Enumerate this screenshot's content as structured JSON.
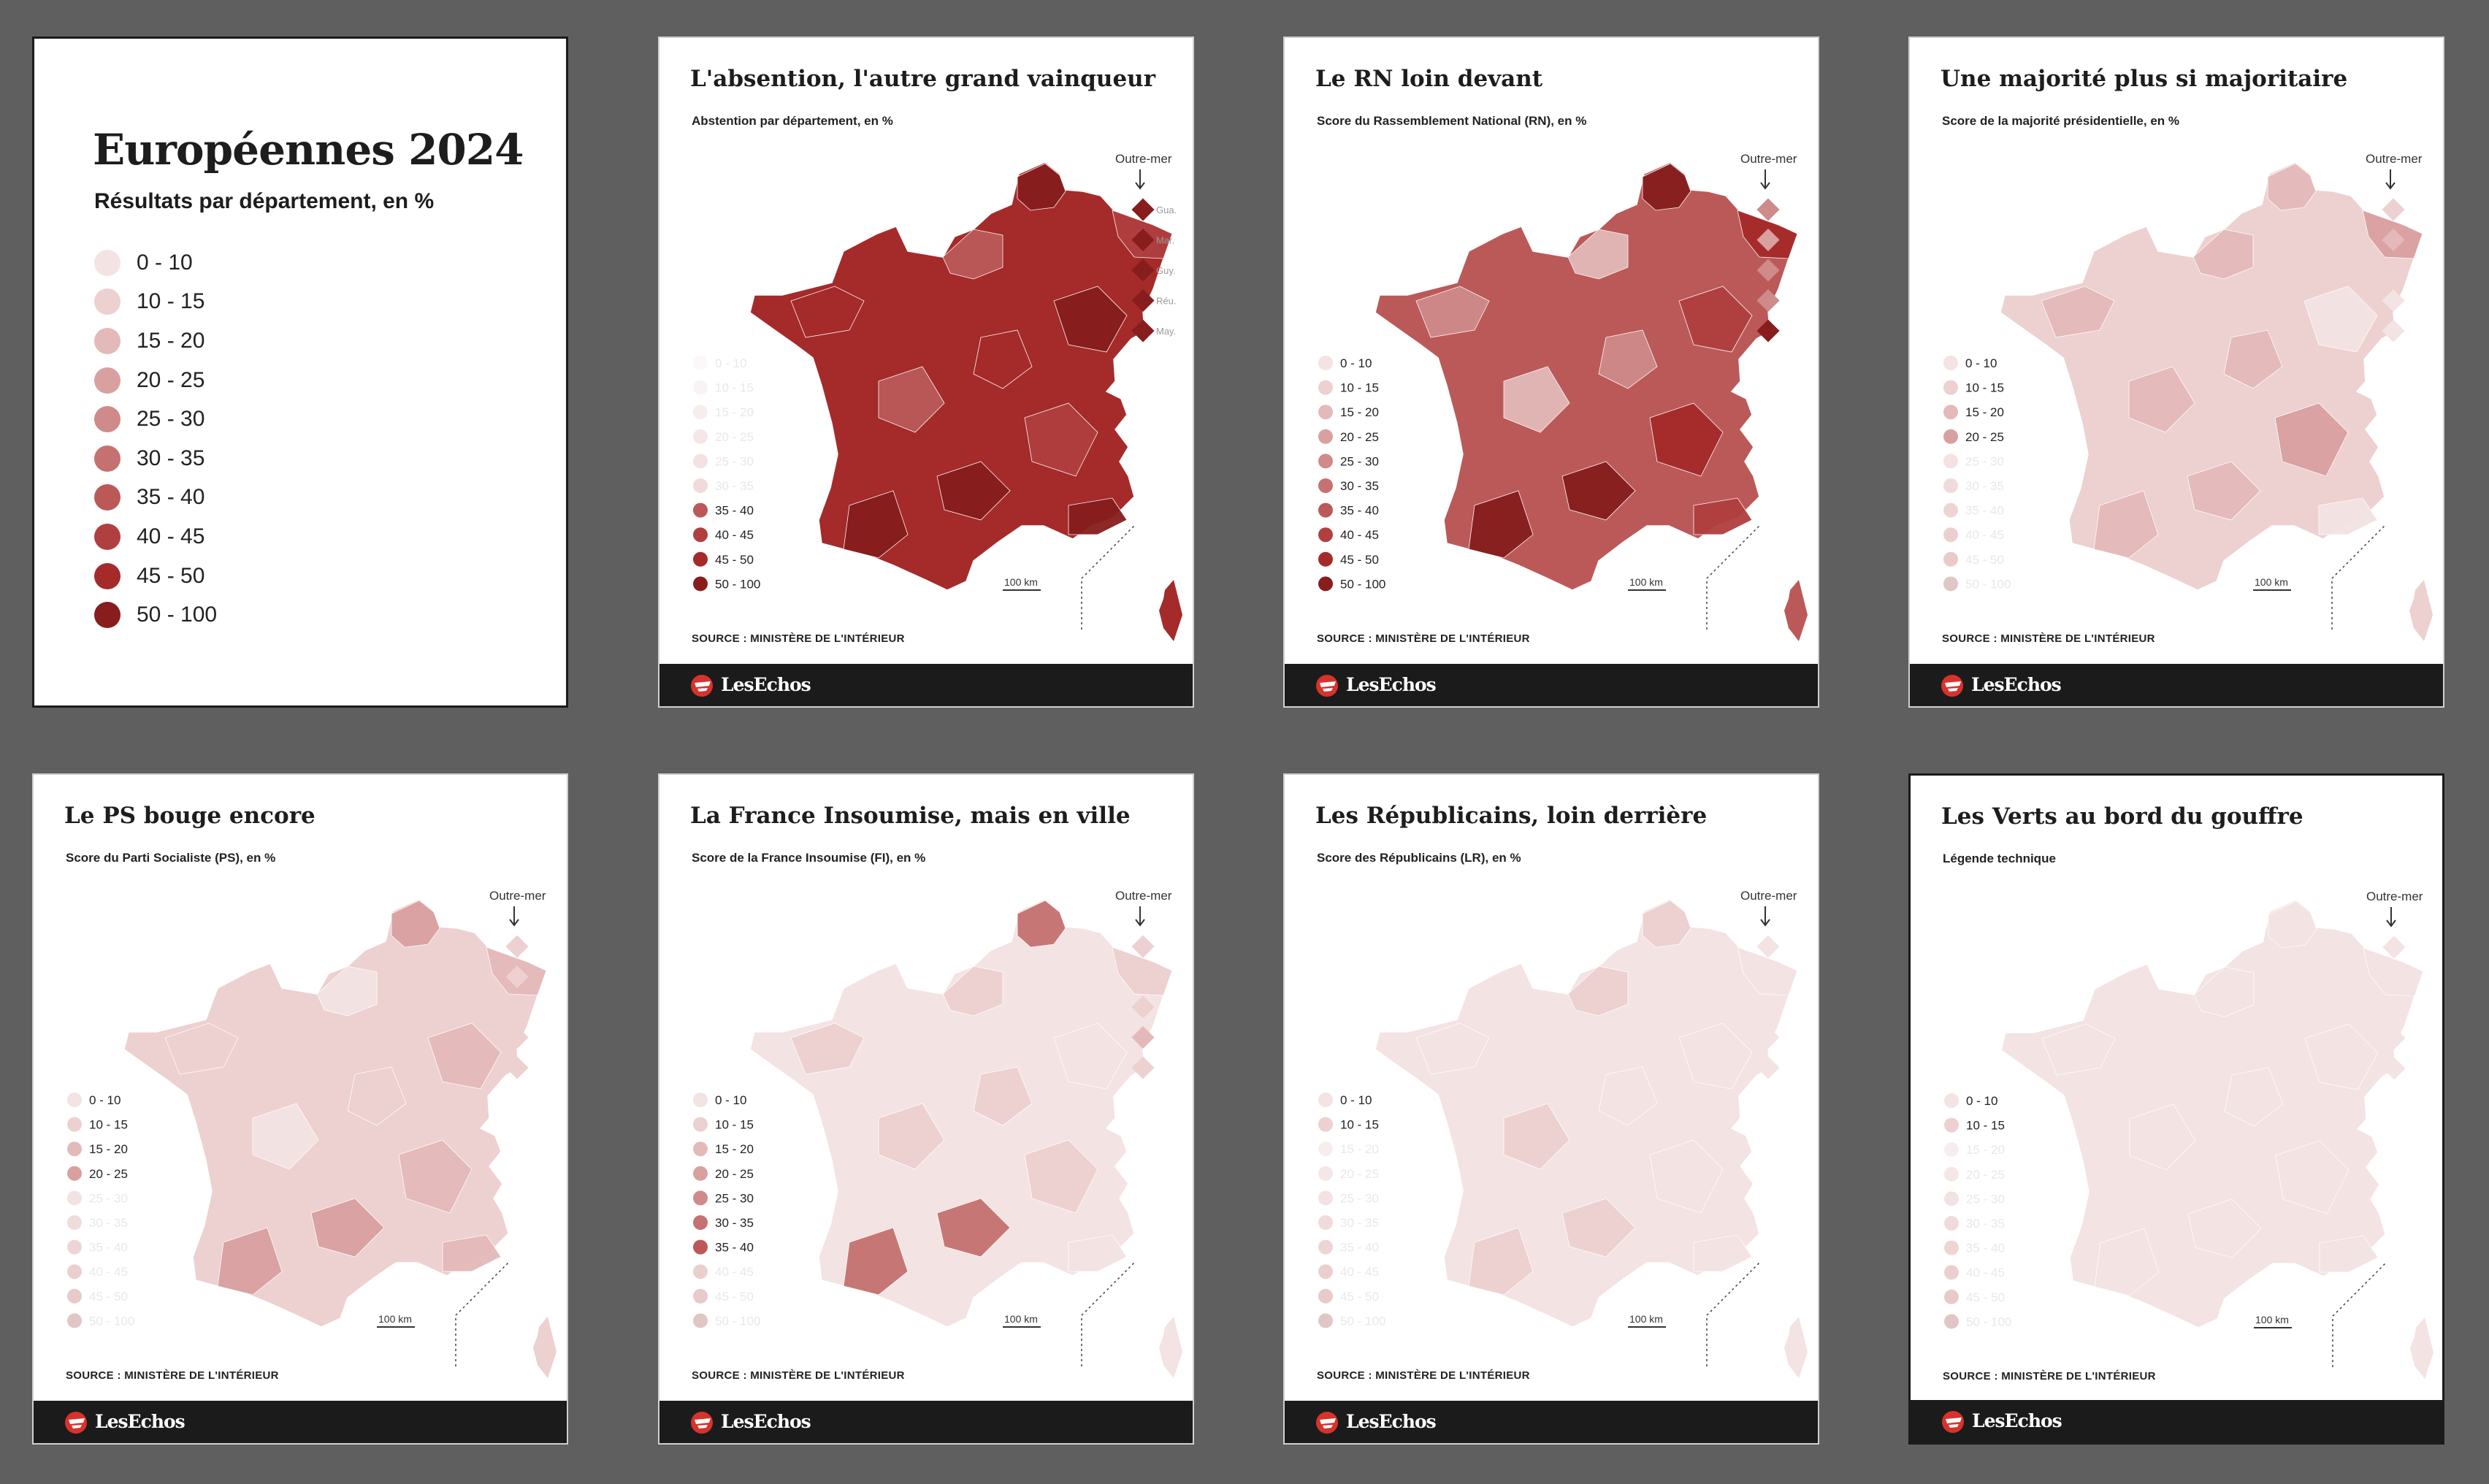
{
  "legend_board": {
    "title": "Européennes 2024",
    "subtitle": "Résultats par département, en %",
    "classes": [
      {
        "label": "0 - 10",
        "color": "#f3e3e3"
      },
      {
        "label": "10 - 15",
        "color": "#edd0d0"
      },
      {
        "label": "15 - 20",
        "color": "#e4b9b9"
      },
      {
        "label": "20 - 25",
        "color": "#d9a0a0"
      },
      {
        "label": "25 - 30",
        "color": "#cf8a8a"
      },
      {
        "label": "30 - 35",
        "color": "#c57171"
      },
      {
        "label": "35 - 40",
        "color": "#bb5959"
      },
      {
        "label": "40 - 45",
        "color": "#b03f3f"
      },
      {
        "label": "45 - 50",
        "color": "#a52a2a"
      },
      {
        "label": "50 - 100",
        "color": "#871d1d"
      }
    ]
  },
  "common": {
    "source": "SOURCE : MINISTÈRE DE L'INTÉRIEUR",
    "logo": "LesEchos",
    "overseas_label": "Outre-mer",
    "scale_label": "100 km",
    "overseas_names": [
      "Gua.",
      "Mar.",
      "Guy.",
      "Réu.",
      "May."
    ]
  },
  "cards": [
    {
      "title": "L'absention, l'autre grand vainqueur",
      "subtitle": "Abstention par département, en %",
      "active_classes": [
        6,
        7,
        8,
        9
      ],
      "base_class": 8,
      "accent_classes": [
        9,
        7,
        6,
        9,
        8
      ],
      "overseas_classes": [
        9,
        9,
        9,
        9,
        9
      ],
      "show_overseas_names": true
    },
    {
      "title": "Le RN loin devant",
      "subtitle": "Score du Rassemblement National (RN), en %",
      "active_classes": [
        0,
        1,
        2,
        3,
        4,
        5,
        6,
        7,
        8,
        9
      ],
      "base_class": 6,
      "accent_classes": [
        9,
        8,
        2,
        7,
        4
      ],
      "overseas_classes": [
        4,
        3,
        4,
        4,
        9
      ],
      "show_overseas_names": false
    },
    {
      "title": "Une majorité plus si majoritaire",
      "subtitle": "Score de la majorité présidentielle, en %",
      "active_classes": [
        0,
        1,
        2,
        3
      ],
      "base_class": 1,
      "accent_classes": [
        2,
        3,
        2,
        0,
        2
      ],
      "overseas_classes": [
        1,
        2,
        1,
        0,
        0
      ],
      "show_overseas_names": false
    },
    {
      "title": "Le PS bouge encore",
      "subtitle": "Score du Parti Socialiste (PS), en %",
      "active_classes": [
        0,
        1,
        2,
        3
      ],
      "base_class": 1,
      "accent_classes": [
        3,
        2,
        0,
        2,
        1
      ],
      "overseas_classes": [
        1,
        1,
        1,
        1,
        1
      ],
      "show_overseas_names": false
    },
    {
      "title": "La France Insoumise, mais en ville",
      "subtitle": "Score de la France Insoumise (FI), en %",
      "active_classes": [
        0,
        1,
        2,
        3,
        4,
        5,
        6
      ],
      "base_class": 0,
      "accent_classes": [
        5,
        1,
        1,
        0,
        1
      ],
      "overseas_classes": [
        1,
        1,
        1,
        2,
        1
      ],
      "show_overseas_names": false
    },
    {
      "title": "Les Républicains, loin derrière",
      "subtitle": "Score des Républicains (LR), en %",
      "active_classes": [
        0,
        1
      ],
      "base_class": 0,
      "accent_classes": [
        1,
        0,
        1,
        0,
        0
      ],
      "overseas_classes": [
        0,
        0,
        0,
        0,
        0
      ],
      "show_overseas_names": false
    },
    {
      "title": "Les Verts au bord du gouffre",
      "subtitle": "Légende technique",
      "active_classes": [
        0,
        1
      ],
      "base_class": 0,
      "accent_classes": [
        0,
        0,
        0,
        0,
        0
      ],
      "overseas_classes": [
        0,
        0,
        0,
        0,
        0
      ],
      "show_overseas_names": false
    }
  ]
}
